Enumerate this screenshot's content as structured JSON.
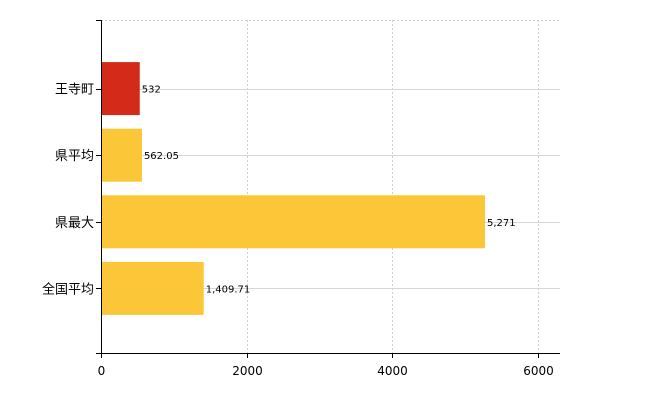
{
  "chart_data": {
    "type": "bar",
    "orientation": "horizontal",
    "categories": [
      "王寺町",
      "県平均",
      "県最大",
      "全国平均"
    ],
    "values": [
      532,
      562.05,
      5271,
      1409.71
    ],
    "value_labels": [
      "532",
      "562.05",
      "5,271",
      "1,409.71"
    ],
    "bar_colors": [
      "#d42a1a",
      "#fbc738",
      "#fbc738",
      "#fbc738"
    ],
    "xlim": [
      0,
      6300
    ],
    "xticks": [
      0,
      2000,
      4000,
      6000
    ],
    "xtick_labels": [
      "0",
      "2000",
      "4000",
      "6000"
    ],
    "grid": true,
    "legend": "none",
    "title": "",
    "xlabel": "",
    "ylabel": ""
  }
}
